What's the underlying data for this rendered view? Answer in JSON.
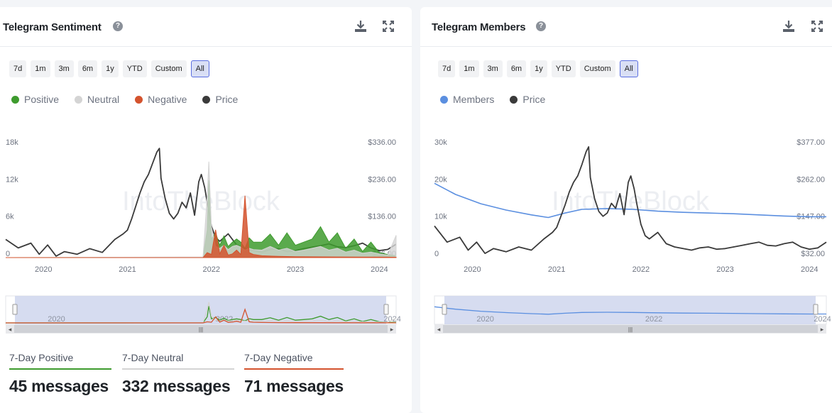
{
  "colors": {
    "positive": "#3e9b2e",
    "neutral": "#d4d4d4",
    "negative": "#d4532e",
    "price": "#3a3a3a",
    "members": "#5b8fe0",
    "active_border": "#5a6ee0"
  },
  "sentiment": {
    "title": "Telegram Sentiment",
    "help_icon": "?",
    "ranges": [
      "7d",
      "1m",
      "3m",
      "6m",
      "1y",
      "YTD",
      "Custom",
      "All"
    ],
    "active_range": "All",
    "legend": [
      "Positive",
      "Neutral",
      "Negative",
      "Price"
    ],
    "watermark": "IntoTheBlock",
    "stats": [
      {
        "label": "7-Day Positive",
        "value": "45 messages"
      },
      {
        "label": "7-Day Neutral",
        "value": "332 messages"
      },
      {
        "label": "7-Day Negative",
        "value": "71 messages"
      }
    ]
  },
  "members": {
    "title": "Telegram Members",
    "help_icon": "?",
    "ranges": [
      "7d",
      "1m",
      "3m",
      "6m",
      "1y",
      "YTD",
      "Custom",
      "All"
    ],
    "active_range": "All",
    "legend": [
      "Members",
      "Price"
    ],
    "watermark": "IntoTheBlock"
  },
  "chart_data": [
    {
      "type": "area",
      "title": "Telegram Sentiment",
      "x_ticks": [
        "2020",
        "2021",
        "2022",
        "2023",
        "2024"
      ],
      "navigator_ticks": [
        "2020",
        "2022",
        "2024"
      ],
      "y_left_ticks": [
        "0",
        "6k",
        "12k",
        "18k"
      ],
      "y_left_range": [
        0,
        18000
      ],
      "y_right_ticks": [
        "$36.00",
        "$136.00",
        "$236.00",
        "$336.00"
      ],
      "y_right_range": [
        36,
        336
      ],
      "x_range": [
        2019.55,
        2024.2
      ],
      "series": [
        {
          "name": "Price",
          "axis": "right",
          "x": [
            2019.55,
            2019.7,
            2019.85,
            2019.95,
            2020.05,
            2020.15,
            2020.25,
            2020.4,
            2020.55,
            2020.7,
            2020.85,
            2020.95,
            2021.0,
            2021.05,
            2021.1,
            2021.15,
            2021.2,
            2021.25,
            2021.3,
            2021.35,
            2021.38,
            2021.4,
            2021.45,
            2021.5,
            2021.55,
            2021.6,
            2021.65,
            2021.7,
            2021.75,
            2021.8,
            2021.85,
            2021.88,
            2021.92,
            2021.95,
            2022.0,
            2022.05,
            2022.1,
            2022.2,
            2022.3,
            2022.4,
            2022.5,
            2022.6,
            2022.7,
            2022.8,
            2022.9,
            2023.0,
            2023.1,
            2023.2,
            2023.3,
            2023.4,
            2023.5,
            2023.6,
            2023.7,
            2023.8,
            2023.9,
            2024.0,
            2024.1,
            2024.2
          ],
          "values": [
            85,
            62,
            75,
            45,
            70,
            40,
            52,
            45,
            60,
            50,
            85,
            100,
            110,
            140,
            175,
            210,
            240,
            260,
            290,
            320,
            330,
            250,
            195,
            155,
            140,
            155,
            185,
            170,
            210,
            150,
            240,
            260,
            225,
            185,
            120,
            90,
            80,
            100,
            70,
            60,
            55,
            50,
            58,
            60,
            52,
            55,
            60,
            64,
            68,
            73,
            65,
            63,
            68,
            75,
            62,
            55,
            58,
            72
          ]
        },
        {
          "name": "Positive",
          "axis": "left",
          "x": [
            2019.55,
            2021.9,
            2021.95,
            2021.97,
            2022.0,
            2022.05,
            2022.1,
            2022.15,
            2022.2,
            2022.25,
            2022.3,
            2022.35,
            2022.4,
            2022.45,
            2022.5,
            2022.6,
            2022.7,
            2022.8,
            2022.9,
            2023.0,
            2023.1,
            2023.2,
            2023.3,
            2023.4,
            2023.5,
            2023.6,
            2023.7,
            2023.8,
            2023.9,
            2024.0,
            2024.1,
            2024.2
          ],
          "values": [
            0,
            50,
            4500,
            12500,
            3000,
            4000,
            2000,
            3500,
            1800,
            2500,
            3000,
            2500,
            1500,
            3200,
            2500,
            2500,
            3800,
            2000,
            4000,
            2000,
            2500,
            3000,
            5000,
            2500,
            4000,
            1500,
            3000,
            1000,
            2500,
            800,
            500,
            300
          ]
        },
        {
          "name": "Neutral",
          "axis": "left",
          "x": [
            2019.55,
            2021.9,
            2021.95,
            2021.97,
            2022.0,
            2022.05,
            2022.1,
            2022.15,
            2022.2,
            2022.25,
            2022.3,
            2022.35,
            2022.4,
            2022.45,
            2022.5,
            2022.6,
            2022.7,
            2022.8,
            2022.9,
            2023.0,
            2023.1,
            2023.2,
            2023.3,
            2023.4,
            2023.5,
            2023.6,
            2023.7,
            2023.8,
            2023.9,
            2024.0,
            2024.1,
            2024.2
          ],
          "values": [
            0,
            100,
            10000,
            15500,
            5000,
            1800,
            1500,
            2000,
            1300,
            1800,
            2000,
            1700,
            1200,
            1500,
            1300,
            1200,
            1800,
            1200,
            1500,
            1000,
            1200,
            1500,
            1800,
            1200,
            1500,
            900,
            1200,
            700,
            900,
            600,
            400,
            3600
          ]
        },
        {
          "name": "Negative",
          "axis": "left",
          "x": [
            2019.55,
            2021.9,
            2021.95,
            2022.0,
            2022.05,
            2022.1,
            2022.15,
            2022.2,
            2022.25,
            2022.3,
            2022.35,
            2022.4,
            2022.45,
            2022.5,
            2022.6,
            2022.8,
            2023.0,
            2023.5,
            2024.0,
            2024.2
          ],
          "values": [
            0,
            0,
            800,
            500,
            4500,
            600,
            2000,
            400,
            600,
            1200,
            500,
            10000,
            800,
            500,
            300,
            200,
            150,
            100,
            80,
            60
          ]
        }
      ]
    },
    {
      "type": "line",
      "title": "Telegram Members",
      "x_ticks": [
        "2020",
        "2021",
        "2022",
        "2023",
        "2024"
      ],
      "navigator_ticks": [
        "2020",
        "2022",
        "2024"
      ],
      "y_left_ticks": [
        "0",
        "10k",
        "20k",
        "30k"
      ],
      "y_left_range": [
        0,
        30000
      ],
      "y_right_ticks": [
        "$32.00",
        "$147.00",
        "$262.00",
        "$377.00"
      ],
      "y_right_range": [
        32,
        377
      ],
      "x_range": [
        2019.55,
        2024.2
      ],
      "series": [
        {
          "name": "Members",
          "axis": "left",
          "x": [
            2019.55,
            2019.8,
            2020.1,
            2020.4,
            2020.7,
            2020.9,
            2021.1,
            2021.3,
            2021.6,
            2021.9,
            2022.2,
            2022.5,
            2022.8,
            2023.1,
            2023.4,
            2023.7,
            2024.0,
            2024.2
          ],
          "values": [
            20000,
            17000,
            14500,
            12800,
            11500,
            10800,
            12000,
            13000,
            13200,
            13000,
            12500,
            12200,
            12000,
            11800,
            11500,
            11200,
            11000,
            11000
          ]
        },
        {
          "name": "Price",
          "axis": "right",
          "x": [
            2019.55,
            2019.7,
            2019.85,
            2019.95,
            2020.05,
            2020.15,
            2020.25,
            2020.4,
            2020.55,
            2020.7,
            2020.85,
            2020.95,
            2021.0,
            2021.05,
            2021.1,
            2021.15,
            2021.2,
            2021.25,
            2021.3,
            2021.35,
            2021.38,
            2021.4,
            2021.45,
            2021.5,
            2021.55,
            2021.6,
            2021.65,
            2021.7,
            2021.75,
            2021.8,
            2021.85,
            2021.88,
            2021.92,
            2021.95,
            2022.0,
            2022.05,
            2022.1,
            2022.2,
            2022.3,
            2022.4,
            2022.5,
            2022.6,
            2022.7,
            2022.8,
            2022.9,
            2023.0,
            2023.1,
            2023.2,
            2023.3,
            2023.4,
            2023.5,
            2023.6,
            2023.7,
            2023.8,
            2023.9,
            2024.0,
            2024.1,
            2024.2
          ],
          "values": [
            130,
            80,
            95,
            55,
            80,
            45,
            60,
            50,
            65,
            55,
            90,
            110,
            125,
            160,
            195,
            235,
            265,
            285,
            320,
            360,
            375,
            280,
            215,
            175,
            160,
            170,
            200,
            185,
            230,
            165,
            265,
            285,
            245,
            200,
            135,
            100,
            90,
            110,
            75,
            65,
            60,
            55,
            62,
            65,
            58,
            60,
            65,
            70,
            75,
            80,
            70,
            68,
            75,
            80,
            65,
            58,
            62,
            80
          ]
        }
      ]
    }
  ]
}
